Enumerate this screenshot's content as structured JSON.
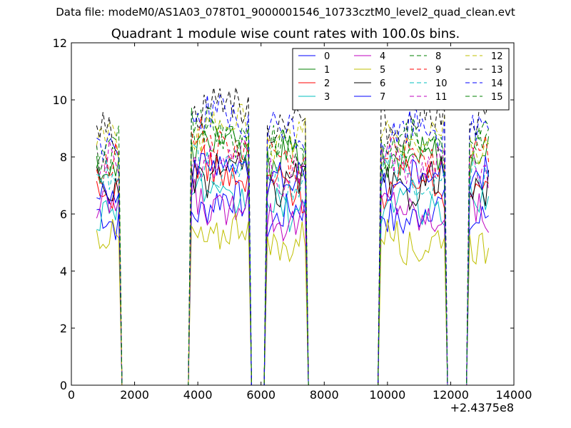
{
  "suptitle": "Data file: modeM0/AS1A03_078T01_9000001546_10733cztM0_level2_quad_clean.evt",
  "chart_data": {
    "type": "line",
    "title": "Quadrant 1 module wise count rates with 100.0s bins.",
    "xlabel": "",
    "ylabel": "",
    "x_offset_label": "+2.4375e8",
    "xlim": [
      0,
      14000
    ],
    "ylim": [
      0,
      12
    ],
    "xticks": [
      0,
      2000,
      4000,
      6000,
      8000,
      10000,
      12000,
      14000
    ],
    "yticks": [
      0,
      2,
      4,
      6,
      8,
      10,
      12
    ],
    "grid": false,
    "legend_position": "top-right",
    "legend_columns": 4,
    "x": [
      800,
      900,
      1000,
      1100,
      1200,
      1300,
      1400,
      1500,
      1600,
      1700,
      1800,
      1900,
      2000,
      2100,
      2200,
      2300,
      2400,
      2500,
      2600,
      2700,
      2800,
      2900,
      3000,
      3100,
      3200,
      3300,
      3400,
      3500,
      3600,
      3700,
      3800,
      3900,
      4000,
      4100,
      4200,
      4300,
      4400,
      4500,
      4600,
      4700,
      4800,
      4900,
      5000,
      5100,
      5200,
      5300,
      5400,
      5500,
      5600,
      5700,
      5800,
      5900,
      6000,
      6100,
      6200,
      6300,
      6400,
      6500,
      6600,
      6700,
      6800,
      6900,
      7000,
      7100,
      7200,
      7300,
      7400,
      7500,
      7600,
      7700,
      7800,
      7900,
      8000,
      8100,
      8200,
      8300,
      8400,
      8500,
      8600,
      8700,
      8800,
      8900,
      9000,
      9100,
      9200,
      9300,
      9400,
      9500,
      9600,
      9700,
      9800,
      9900,
      10000,
      10100,
      10200,
      10300,
      10400,
      10500,
      10600,
      10700,
      10800,
      10900,
      11000,
      11100,
      11200,
      11300,
      11400,
      11500,
      11600,
      11700,
      11800,
      11900,
      12000,
      12100,
      12200,
      12300,
      12400,
      12500,
      12600,
      12700,
      12800,
      12900,
      13000,
      13100,
      13200
    ],
    "series": [
      {
        "name": "0",
        "color": "#0000ff",
        "style": "solid",
        "base": 5.9
      },
      {
        "name": "1",
        "color": "#008000",
        "style": "solid",
        "base": 7.8
      },
      {
        "name": "2",
        "color": "#ff0000",
        "style": "solid",
        "base": 6.9
      },
      {
        "name": "3",
        "color": "#00bfbf",
        "style": "solid",
        "base": 6.2
      },
      {
        "name": "4",
        "color": "#bf00bf",
        "style": "solid",
        "base": 6.0
      },
      {
        "name": "5",
        "color": "#bfbf00",
        "style": "solid",
        "base": 5.0
      },
      {
        "name": "6",
        "color": "#000000",
        "style": "solid",
        "base": 6.9
      },
      {
        "name": "7",
        "color": "#0000ff",
        "style": "solid",
        "base": 7.1
      },
      {
        "name": "8",
        "color": "#008000",
        "style": "dashed",
        "base": 8.2
      },
      {
        "name": "9",
        "color": "#ff0000",
        "style": "dashed",
        "base": 7.9
      },
      {
        "name": "10",
        "color": "#00bfbf",
        "style": "dashed",
        "base": 7.2
      },
      {
        "name": "11",
        "color": "#bf00bf",
        "style": "dashed",
        "base": 7.6
      },
      {
        "name": "12",
        "color": "#bfbf00",
        "style": "dashed",
        "base": 8.5
      },
      {
        "name": "13",
        "color": "#000000",
        "style": "dashed",
        "base": 9.1
      },
      {
        "name": "14",
        "color": "#0000ff",
        "style": "dashed",
        "base": 8.7
      },
      {
        "name": "15",
        "color": "#008000",
        "style": "dashed",
        "base": 8.3
      }
    ],
    "active_segments": [
      [
        800,
        1500
      ],
      [
        3800,
        5600
      ],
      [
        6200,
        7400
      ],
      [
        9800,
        11800
      ],
      [
        12600,
        13200
      ]
    ],
    "segment_scale": [
      1.0,
      1.07,
      1.0,
      1.02,
      1.02
    ]
  }
}
